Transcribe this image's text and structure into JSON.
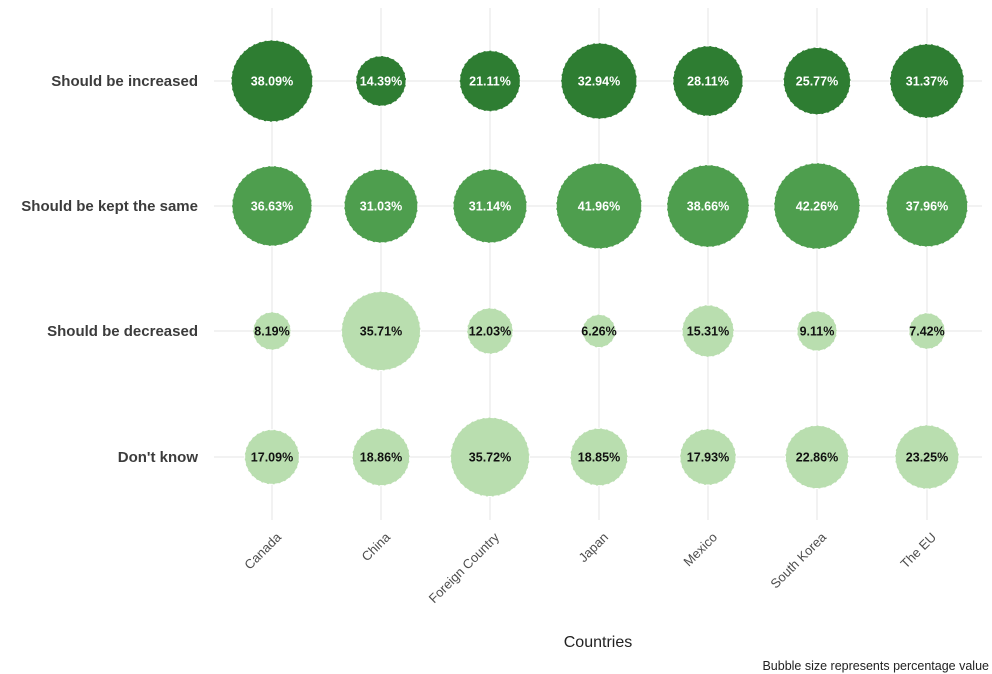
{
  "chart_data": {
    "type": "bubble",
    "categories": [
      "Canada",
      "China",
      "Foreign Country",
      "Japan",
      "Mexico",
      "South Korea",
      "The EU"
    ],
    "rows": [
      "Should be increased",
      "Should be kept the same",
      "Should be decreased",
      "Don't know"
    ],
    "series": [
      {
        "name": "Should be increased",
        "values": [
          38.09,
          14.39,
          21.11,
          32.94,
          28.11,
          25.77,
          31.37
        ],
        "labels": [
          "38.09%",
          "14.39%",
          "21.11%",
          "32.94%",
          "28.11%",
          "25.77%",
          "31.37%"
        ]
      },
      {
        "name": "Should be kept the same",
        "values": [
          36.63,
          31.03,
          31.14,
          41.96,
          38.66,
          42.26,
          37.96
        ],
        "labels": [
          "36.63%",
          "31.03%",
          "31.14%",
          "41.96%",
          "38.66%",
          "42.26%",
          "37.96%"
        ]
      },
      {
        "name": "Should be decreased",
        "values": [
          8.19,
          35.71,
          12.03,
          6.26,
          15.31,
          9.11,
          7.42
        ],
        "labels": [
          "8.19%",
          "35.71%",
          "12.03%",
          "6.26%",
          "15.31%",
          "9.11%",
          "7.42%"
        ]
      },
      {
        "name": "Don't know",
        "values": [
          17.09,
          18.86,
          35.72,
          18.85,
          17.93,
          22.86,
          23.25
        ],
        "labels": [
          "17.09%",
          "18.86%",
          "35.72%",
          "18.85%",
          "17.93%",
          "22.86%",
          "23.25%"
        ]
      }
    ],
    "xlabel": "Countries",
    "ylabel": "",
    "caption": "Bubble size represents percentage value",
    "grid": true,
    "colors": {
      "increased": "#2e7d32",
      "kept": "#4e9e4e",
      "decreased": "#b9deaf",
      "dont_know": "#b9deaf",
      "label_dark_fill": "#ffffff",
      "label_light_fill": "#111111",
      "grid": "#e6e6e6"
    }
  }
}
